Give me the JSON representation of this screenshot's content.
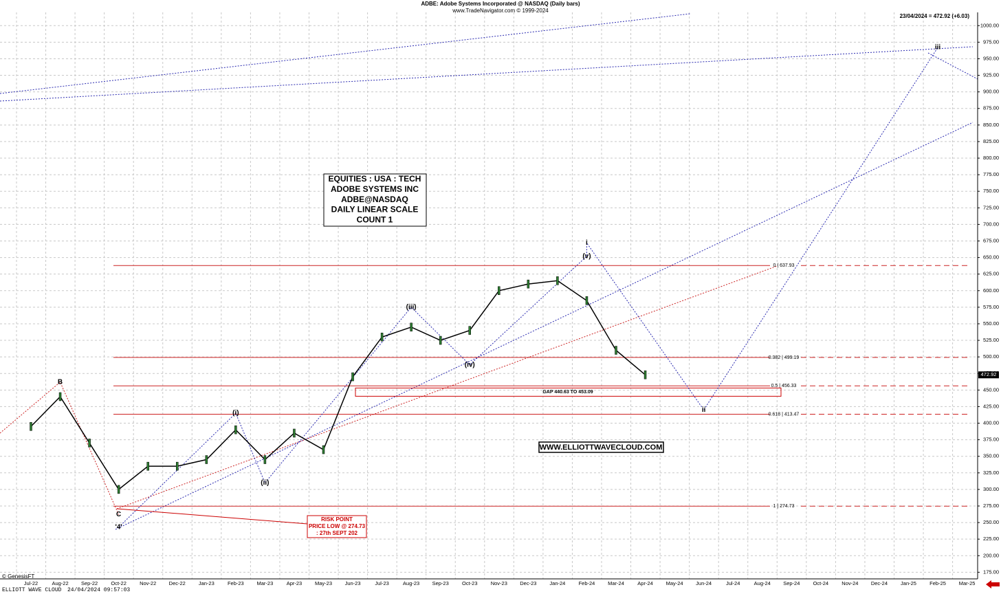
{
  "chart_data": {
    "type": "line",
    "title": "ADBE:  Adobe Systems Incorporated @ NASDAQ  (Daily bars)",
    "subtitle": "www.TradeNavigator.com © 1999-2024",
    "last_quote": "23/04/2024 = 472.92 (+6.03)",
    "last_price": 472.92,
    "color": "#000000",
    "grid": true,
    "categories": [
      "Jul-22",
      "Aug-22",
      "Sep-22",
      "Oct-22",
      "Nov-22",
      "Dec-22",
      "Jan-23",
      "Feb-23",
      "Mar-23",
      "Apr-23",
      "May-23",
      "Jun-23",
      "Jul-23",
      "Aug-23",
      "Sep-23",
      "Oct-23",
      "Nov-23",
      "Dec-23",
      "Jan-24",
      "Feb-24",
      "Mar-24",
      "Apr-24",
      "May-24",
      "Jun-24",
      "Jul-24",
      "Aug-24",
      "Sep-24",
      "Oct-24",
      "Nov-24",
      "Dec-24",
      "Jan-25",
      "Feb-25",
      "Mar-25"
    ],
    "values": [
      395,
      440,
      370,
      300,
      335,
      335,
      345,
      390,
      345,
      385,
      360,
      470,
      530,
      545,
      525,
      540,
      600,
      610,
      615,
      585,
      510,
      473,
      null,
      null,
      null,
      null,
      null,
      null,
      null,
      null,
      null,
      null,
      null
    ],
    "ylim": [
      165,
      1020
    ],
    "yticks": [
      {
        "value": 175,
        "label": "175.00"
      },
      {
        "value": 200,
        "label": "200.00"
      },
      {
        "value": 225,
        "label": "225.00"
      },
      {
        "value": 250,
        "label": "250.00"
      },
      {
        "value": 275,
        "label": "275.00"
      },
      {
        "value": 300,
        "label": "300.00"
      },
      {
        "value": 325,
        "label": "325.00"
      },
      {
        "value": 350,
        "label": "350.00"
      },
      {
        "value": 375,
        "label": "375.00"
      },
      {
        "value": 400,
        "label": "400.00"
      },
      {
        "value": 425,
        "label": "425.00"
      },
      {
        "value": 450,
        "label": "450.00"
      },
      {
        "value": 475,
        "label": "475.00"
      },
      {
        "value": 500,
        "label": "500.00"
      },
      {
        "value": 525,
        "label": "525.00"
      },
      {
        "value": 550,
        "label": "550.00"
      },
      {
        "value": 575,
        "label": "575.00"
      },
      {
        "value": 600,
        "label": "600.00"
      },
      {
        "value": 625,
        "label": "625.00"
      },
      {
        "value": 650,
        "label": "650.00"
      },
      {
        "value": 675,
        "label": "675.00"
      },
      {
        "value": 700,
        "label": "700.00"
      },
      {
        "value": 725,
        "label": "725.00"
      },
      {
        "value": 750,
        "label": "750.00"
      },
      {
        "value": 775,
        "label": "775.00"
      },
      {
        "value": 800,
        "label": "800.00"
      },
      {
        "value": 825,
        "label": "825.00"
      },
      {
        "value": 850,
        "label": "850.00"
      },
      {
        "value": 875,
        "label": "875.00"
      },
      {
        "value": 900,
        "label": "900.00"
      },
      {
        "value": 925,
        "label": "925.00"
      },
      {
        "value": 950,
        "label": "950.00"
      },
      {
        "value": 975,
        "label": "975.00"
      },
      {
        "value": 1000,
        "label": "1000.00"
      }
    ],
    "fib_levels": [
      {
        "value": 637.93,
        "label": "0 | 637.93"
      },
      {
        "value": 499.19,
        "label": "0.382 | 499.19"
      },
      {
        "value": 456.33,
        "label": "0.5 | 456.33"
      },
      {
        "value": 413.47,
        "label": "0.618 | 413.47"
      },
      {
        "value": 274.73,
        "label": "1 | 274.73"
      }
    ],
    "gap": {
      "low": 440.63,
      "high": 453.09,
      "label": "GAP 440.63 TO 453.09"
    },
    "waves": [
      {
        "text": "B",
        "x": "Aug-22",
        "y": 462,
        "color": "#cc0000"
      },
      {
        "text": "C",
        "x": "Oct-22",
        "y": 262,
        "color": "#cc0000"
      },
      {
        "text": "'4'",
        "x": "Oct-22",
        "y": 243,
        "color": "#1a1aa0"
      },
      {
        "text": "(i)",
        "x": "Feb-23",
        "y": 415,
        "color": "#1a1aa0"
      },
      {
        "text": "(ii)",
        "x": "Mar-23",
        "y": 310,
        "color": "#1a1aa0"
      },
      {
        "text": "(iii)",
        "x": "Aug-23",
        "y": 575,
        "color": "#1a1aa0"
      },
      {
        "text": "(iv)",
        "x": "Oct-23",
        "y": 488,
        "color": "#1a1aa0"
      },
      {
        "text": "(v)",
        "x": "Feb-24",
        "y": 652,
        "color": "#1a1aa0"
      },
      {
        "text": "i",
        "x": "Feb-24",
        "y": 672,
        "color": "#1a1aa0"
      },
      {
        "text": "ii",
        "x": "Jun-24",
        "y": 420,
        "color": "#1a1aa0"
      },
      {
        "text": "iii",
        "x": "Feb-25",
        "y": 967,
        "color": "#1a1aa0"
      }
    ],
    "info_box": [
      "EQUITIES : USA : TECH",
      "ADOBE SYSTEMS INC",
      "ADBE@NASDAQ",
      "DAILY LINEAR SCALE",
      "COUNT 1"
    ],
    "risk_box": [
      "RISK POINT",
      "PRICE LOW @ 274.73",
      ": 27th SEPT 202"
    ],
    "website": "WWW.ELLIOTTWAVECLOUD.COM",
    "footer_brand": "ELLIOTT WAVE CLOUD",
    "footer_time": "24/04/2024 09:57:03",
    "copyright": "© GenesisFT"
  }
}
